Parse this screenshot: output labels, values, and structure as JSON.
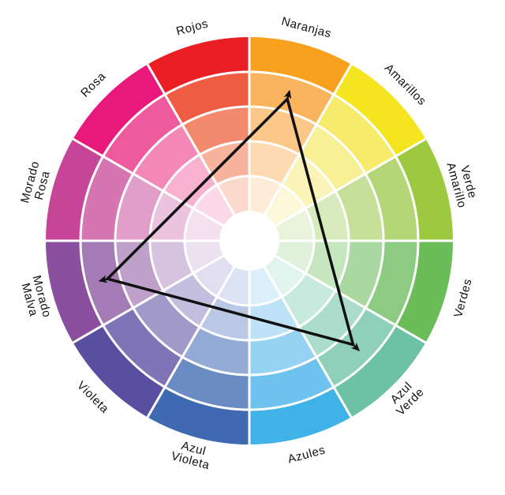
{
  "wheel": {
    "segments": [
      {
        "id": "naranjas",
        "label_lines": [
          "Naranjas"
        ],
        "colors": [
          "#f9a01e",
          "#fbb45e",
          "#fcc88a",
          "#fedab3",
          "#feecd8"
        ]
      },
      {
        "id": "amarillos",
        "label_lines": [
          "Amarillos"
        ],
        "colors": [
          "#f5e51f",
          "#f6eb6a",
          "#f8f094",
          "#faf4b8",
          "#fcf8d9"
        ]
      },
      {
        "id": "verde-amarillo",
        "label_lines": [
          "Verde",
          "Amarillo"
        ],
        "colors": [
          "#9cc93f",
          "#b4d676",
          "#c6e09a",
          "#d8ebbd",
          "#eaf4dc"
        ]
      },
      {
        "id": "verdes",
        "label_lines": [
          "Verdes"
        ],
        "colors": [
          "#6bbd59",
          "#8ecb82",
          "#aad8a1",
          "#c6e6bf",
          "#e0f2dc"
        ]
      },
      {
        "id": "azul-verde",
        "label_lines": [
          "Azul",
          "Verde"
        ],
        "colors": [
          "#6dc2a6",
          "#8fd0bb",
          "#acddcc",
          "#c8e9de",
          "#e2f4ee"
        ]
      },
      {
        "id": "azules",
        "label_lines": [
          "Azules"
        ],
        "colors": [
          "#3fb2e8",
          "#6ec2ee",
          "#96d2f3",
          "#bee2f7",
          "#dcf0fb"
        ]
      },
      {
        "id": "azul-violeta",
        "label_lines": [
          "Azul",
          "Violeta"
        ],
        "colors": [
          "#3f6ab1",
          "#6b8bc5",
          "#93aad5",
          "#bac8e5",
          "#dce3f2"
        ]
      },
      {
        "id": "violeta",
        "label_lines": [
          "Violeta"
        ],
        "colors": [
          "#5a4ea0",
          "#7e74b6",
          "#a19ac9",
          "#c3bedd",
          "#e1def0"
        ]
      },
      {
        "id": "morado-malva",
        "label_lines": [
          "Morado",
          "Malva"
        ],
        "colors": [
          "#8a4f9e",
          "#a57bb6",
          "#bea0cb",
          "#d6c3df",
          "#ebe1f0"
        ]
      },
      {
        "id": "morado-rosa",
        "label_lines": [
          "Morado",
          "Rosa"
        ],
        "colors": [
          "#c74598",
          "#d576b3",
          "#e09ec9",
          "#ebc3de",
          "#f5e1ee"
        ]
      },
      {
        "id": "rosa",
        "label_lines": [
          "Rosa"
        ],
        "colors": [
          "#e8197a",
          "#ee5a9c",
          "#f387b6",
          "#f8b2d0",
          "#fbd9e7"
        ]
      },
      {
        "id": "rojos",
        "label_lines": [
          "Rojos"
        ],
        "colors": [
          "#ea1f24",
          "#ee5c43",
          "#f38a6e",
          "#f7b39c",
          "#fbd9cc"
        ]
      }
    ],
    "center_color": "#ffffff",
    "arrow_color": "#111111",
    "triad_vertices": [
      "naranjas",
      "morado-malva",
      "azul-verde"
    ]
  }
}
